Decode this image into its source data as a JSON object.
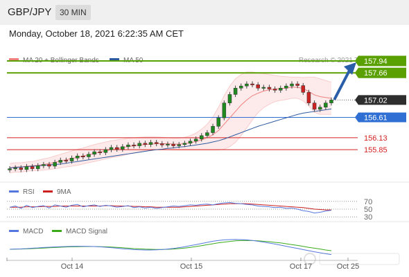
{
  "header": {
    "symbol": "GBP/JPY",
    "interval": "30 MIN",
    "datetime": "Monday, October 18, 2021 6:22:35 AM CET"
  },
  "colors": {
    "ma20": "#f08080",
    "ma50": "#2d5a9e",
    "resistance": "#5aa000",
    "pivot": "#2f6fd4",
    "support": "#d42020",
    "rsi": "#5577dd",
    "rsi_ma": "#cc1f1f",
    "macd": "#5577dd",
    "macd_signal": "#3aaa1a",
    "candle_up": "#1f8a1f",
    "candle_down": "#cc2222"
  },
  "icons": {
    "arrow": "up-right-arrow",
    "watermark": "fxstreet-logo"
  },
  "chart_data": [
    {
      "type": "candlestick",
      "name": "price",
      "legend": [
        {
          "label": "MA 20 + Bollinger Bands",
          "color": "#f08080"
        },
        {
          "label": "MA 50",
          "color": "#2d5a9e"
        }
      ],
      "credit": "Research © 2021 Trading Central",
      "ylim": [
        155.1,
        158.3
      ],
      "x_ticks": [
        "Oct 14",
        "Oct 15",
        "Oct 17",
        "Oct 25"
      ],
      "levels": [
        {
          "value": 157.94,
          "label": "157.94",
          "role": "resistance"
        },
        {
          "value": 157.66,
          "label": "157.66",
          "role": "resistance"
        },
        {
          "value": 157.02,
          "label": "157.02",
          "role": "last"
        },
        {
          "value": 156.61,
          "label": "156.61",
          "role": "pivot"
        },
        {
          "value": 156.13,
          "label": "156.13",
          "role": "support"
        },
        {
          "value": 155.85,
          "label": "155.85",
          "role": "support"
        }
      ],
      "trend": {
        "from": 157.02,
        "to": 157.94
      },
      "close": [
        155.4,
        155.42,
        155.38,
        155.45,
        155.4,
        155.47,
        155.5,
        155.46,
        155.55,
        155.6,
        155.58,
        155.65,
        155.7,
        155.68,
        155.74,
        155.8,
        155.78,
        155.85,
        155.9,
        155.86,
        155.92,
        155.96,
        155.94,
        156.0,
        155.97,
        156.02,
        155.99,
        155.96,
        155.98,
        155.94,
        155.97,
        156.0,
        156.05,
        156.1,
        156.18,
        156.25,
        156.4,
        156.6,
        156.95,
        157.15,
        157.3,
        157.35,
        157.4,
        157.38,
        157.3,
        157.32,
        157.28,
        157.25,
        157.3,
        157.35,
        157.4,
        157.36,
        157.2,
        156.95,
        156.8,
        156.85,
        156.95,
        157.02
      ],
      "ma20": [
        155.42,
        155.44,
        155.44,
        155.46,
        155.47,
        155.48,
        155.5,
        155.52,
        155.55,
        155.58,
        155.61,
        155.64,
        155.67,
        155.7,
        155.73,
        155.76,
        155.79,
        155.82,
        155.85,
        155.87,
        155.9,
        155.92,
        155.94,
        155.96,
        155.97,
        155.98,
        155.99,
        155.99,
        155.99,
        155.98,
        155.98,
        155.99,
        156.01,
        156.04,
        156.08,
        156.13,
        156.2,
        156.3,
        156.45,
        156.6,
        156.75,
        156.9,
        157.02,
        157.12,
        157.18,
        157.23,
        157.26,
        157.28,
        157.29,
        157.3,
        157.32,
        157.32,
        157.29,
        157.22,
        157.14,
        157.1,
        157.08,
        157.06
      ],
      "bb_upper": [
        155.52,
        155.54,
        155.54,
        155.56,
        155.57,
        155.6,
        155.63,
        155.66,
        155.7,
        155.74,
        155.78,
        155.82,
        155.86,
        155.89,
        155.93,
        155.97,
        156.0,
        156.03,
        156.06,
        156.08,
        156.1,
        156.12,
        156.13,
        156.14,
        156.15,
        156.15,
        156.15,
        156.14,
        156.13,
        156.12,
        156.12,
        156.14,
        156.18,
        156.24,
        156.33,
        156.45,
        156.62,
        156.85,
        157.12,
        157.35,
        157.52,
        157.62,
        157.68,
        157.68,
        157.66,
        157.64,
        157.62,
        157.6,
        157.58,
        157.57,
        157.56,
        157.56,
        157.55,
        157.56,
        157.56,
        157.52,
        157.48,
        157.44
      ],
      "bb_lower": [
        155.3,
        155.32,
        155.32,
        155.34,
        155.35,
        155.36,
        155.37,
        155.38,
        155.4,
        155.42,
        155.44,
        155.46,
        155.48,
        155.51,
        155.54,
        155.57,
        155.6,
        155.63,
        155.66,
        155.68,
        155.71,
        155.74,
        155.77,
        155.8,
        155.82,
        155.83,
        155.84,
        155.85,
        155.85,
        155.84,
        155.84,
        155.84,
        155.84,
        155.84,
        155.84,
        155.84,
        155.84,
        155.84,
        155.86,
        155.92,
        156.02,
        156.18,
        156.36,
        156.55,
        156.72,
        156.84,
        156.92,
        156.98,
        157.01,
        157.03,
        157.06,
        157.06,
        157.0,
        156.88,
        156.73,
        156.68,
        156.68,
        156.68
      ],
      "ma50": [
        155.42,
        155.43,
        155.44,
        155.45,
        155.46,
        155.47,
        155.48,
        155.49,
        155.5,
        155.51,
        155.53,
        155.55,
        155.57,
        155.59,
        155.61,
        155.63,
        155.65,
        155.67,
        155.69,
        155.71,
        155.73,
        155.75,
        155.77,
        155.79,
        155.81,
        155.83,
        155.85,
        155.86,
        155.88,
        155.89,
        155.91,
        155.92,
        155.94,
        155.96,
        155.98,
        156.0,
        156.03,
        156.06,
        156.1,
        156.15,
        156.2,
        156.25,
        156.3,
        156.35,
        156.4,
        156.44,
        156.48,
        156.52,
        156.56,
        156.6,
        156.64,
        156.68,
        156.71,
        156.73,
        156.75,
        156.77,
        156.79,
        156.81
      ]
    },
    {
      "type": "line",
      "name": "rsi",
      "legend": [
        {
          "label": "RSI",
          "color": "#5577dd"
        },
        {
          "label": "9MA",
          "color": "#cc1f1f"
        }
      ],
      "ylim": [
        25,
        75
      ],
      "levels": [
        {
          "value": 70,
          "label": "70"
        },
        {
          "value": 50,
          "label": "50"
        },
        {
          "value": 30,
          "label": "30"
        }
      ],
      "rsi": [
        55,
        58,
        52,
        60,
        54,
        57,
        59,
        53,
        61,
        58,
        55,
        60,
        62,
        56,
        59,
        61,
        57,
        60,
        58,
        55,
        57,
        59,
        54,
        56,
        53,
        55,
        52,
        54,
        56,
        58,
        57,
        59,
        61,
        60,
        62,
        63,
        61,
        64,
        66,
        67,
        65,
        64,
        62,
        61,
        58,
        57,
        56,
        54,
        55,
        52,
        53,
        50,
        46,
        44,
        40,
        42,
        45,
        47
      ],
      "ma": [
        55,
        55,
        55,
        56,
        56,
        56,
        57,
        57,
        57,
        58,
        58,
        58,
        58,
        58,
        58,
        58,
        58,
        59,
        59,
        58,
        58,
        58,
        57,
        57,
        56,
        56,
        55,
        55,
        55,
        55,
        55,
        56,
        57,
        58,
        59,
        60,
        61,
        62,
        63,
        64,
        64,
        64,
        64,
        63,
        62,
        61,
        60,
        59,
        58,
        57,
        56,
        55,
        54,
        52,
        50,
        49,
        48,
        48
      ]
    },
    {
      "type": "line",
      "name": "macd",
      "legend": [
        {
          "label": "MACD",
          "color": "#5577dd"
        },
        {
          "label": "MACD Signal",
          "color": "#3aaa1a"
        }
      ],
      "ylim": [
        -0.6,
        1.0
      ],
      "macd": [
        0.0,
        0.02,
        0.03,
        0.05,
        0.08,
        0.1,
        0.13,
        0.15,
        0.17,
        0.19,
        0.2,
        0.21,
        0.22,
        0.22,
        0.21,
        0.2,
        0.18,
        0.15,
        0.12,
        0.08,
        0.04,
        0.01,
        -0.02,
        -0.04,
        -0.05,
        -0.05,
        -0.04,
        -0.02,
        0.02,
        0.06,
        0.12,
        0.18,
        0.26,
        0.34,
        0.42,
        0.5,
        0.58,
        0.64,
        0.68,
        0.7,
        0.71,
        0.7,
        0.68,
        0.64,
        0.58,
        0.52,
        0.45,
        0.38,
        0.3,
        0.22,
        0.14,
        0.06,
        -0.02,
        -0.1,
        -0.18,
        -0.25,
        -0.32,
        -0.38
      ],
      "signal": [
        0.0,
        0.01,
        0.02,
        0.03,
        0.05,
        0.07,
        0.09,
        0.11,
        0.13,
        0.15,
        0.17,
        0.18,
        0.19,
        0.2,
        0.2,
        0.2,
        0.19,
        0.18,
        0.16,
        0.14,
        0.11,
        0.08,
        0.05,
        0.03,
        0.01,
        0.0,
        -0.01,
        -0.01,
        0.0,
        0.02,
        0.05,
        0.09,
        0.14,
        0.2,
        0.26,
        0.33,
        0.4,
        0.47,
        0.52,
        0.57,
        0.61,
        0.63,
        0.64,
        0.63,
        0.61,
        0.58,
        0.55,
        0.5,
        0.46,
        0.4,
        0.34,
        0.28,
        0.21,
        0.14,
        0.08,
        0.02,
        -0.05,
        -0.1
      ]
    }
  ]
}
